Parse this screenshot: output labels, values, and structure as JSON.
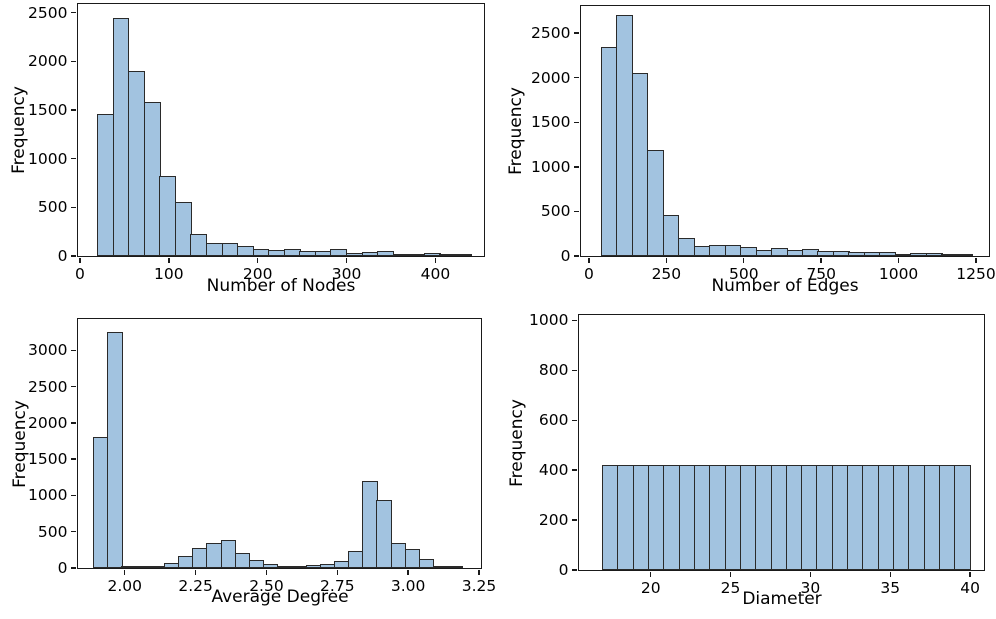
{
  "figure": {
    "background": "#ffffff",
    "bar_fill_color": "#a2c3e0",
    "bar_edge_color": "#2a2a2a",
    "spine_color": "#1a1a1a",
    "text_color": "#000000"
  },
  "chart_data": [
    {
      "type": "bar",
      "subtype": "histogram",
      "title": "",
      "xlabel": "Number of Nodes",
      "ylabel": "Frequency",
      "bin_start": 20,
      "bin_width": 17.5,
      "values": [
        1460,
        2450,
        1900,
        1580,
        820,
        560,
        230,
        130,
        135,
        100,
        70,
        65,
        75,
        55,
        55,
        70,
        35,
        40,
        55,
        15,
        20,
        30,
        10,
        12
      ],
      "xlim": [
        -2.2,
        454.6
      ],
      "ylim": [
        0,
        2590
      ],
      "xticks": [
        0,
        100,
        200,
        300,
        400
      ],
      "xtick_labels": [
        "0",
        "100",
        "200",
        "300",
        "400"
      ],
      "yticks": [
        0,
        500,
        1000,
        1500,
        2000,
        2500
      ],
      "ytick_labels": [
        "0",
        "500",
        "1000",
        "1500",
        "2000",
        "2500"
      ],
      "grid": false,
      "legend": null
    },
    {
      "type": "bar",
      "subtype": "histogram",
      "title": "",
      "xlabel": "Number of Edges",
      "ylabel": "Frequency",
      "bin_start": 40,
      "bin_width": 50,
      "values": [
        2350,
        2700,
        2050,
        1190,
        455,
        205,
        115,
        120,
        125,
        105,
        70,
        85,
        65,
        75,
        60,
        60,
        50,
        45,
        45,
        25,
        30,
        30,
        10,
        15
      ],
      "xlim": [
        -25.7,
        1292
      ],
      "ylim": [
        0,
        2805
      ],
      "xticks": [
        0,
        250,
        500,
        750,
        1000,
        1250
      ],
      "xtick_labels": [
        "0",
        "250",
        "500",
        "750",
        "1000",
        "1250"
      ],
      "yticks": [
        0,
        500,
        1000,
        1500,
        2000,
        2500
      ],
      "ytick_labels": [
        "0",
        "500",
        "1000",
        "1500",
        "2000",
        "2500"
      ],
      "grid": false,
      "legend": null
    },
    {
      "type": "bar",
      "subtype": "histogram",
      "title": "",
      "xlabel": "Average Degree",
      "ylabel": "Frequency",
      "bin_start": 1.89,
      "bin_width": 0.05,
      "values": [
        1800,
        3250,
        5,
        10,
        20,
        70,
        160,
        270,
        350,
        380,
        205,
        105,
        50,
        30,
        25,
        35,
        55,
        100,
        240,
        1200,
        940,
        350,
        260,
        120,
        30,
        5
      ],
      "xlim": [
        1.835,
        3.257
      ],
      "ylim": [
        0,
        3430
      ],
      "xticks": [
        2.0,
        2.25,
        2.5,
        2.75,
        3.0,
        3.25
      ],
      "xtick_labels": [
        "2.00",
        "2.25",
        "2.50",
        "2.75",
        "3.00",
        "3.25"
      ],
      "yticks": [
        0,
        500,
        1000,
        1500,
        2000,
        2500,
        3000
      ],
      "ytick_labels": [
        "0",
        "500",
        "1000",
        "1500",
        "2000",
        "2500",
        "3000"
      ],
      "grid": false,
      "legend": null
    },
    {
      "type": "bar",
      "subtype": "histogram",
      "title": "",
      "xlabel": "Diameter",
      "ylabel": "Frequency",
      "bin_start": 17,
      "bin_width": 0.9583,
      "values": [
        420,
        420,
        420,
        420,
        420,
        420,
        420,
        420,
        420,
        420,
        420,
        420,
        420,
        420,
        420,
        420,
        420,
        420,
        420,
        420,
        420,
        420,
        420,
        420
      ],
      "xlim": [
        15.51,
        40.87
      ],
      "ylim": [
        0,
        1022
      ],
      "xticks": [
        20,
        25,
        30,
        35,
        40
      ],
      "xtick_labels": [
        "20",
        "25",
        "30",
        "35",
        "40"
      ],
      "yticks": [
        0,
        200,
        400,
        600,
        800,
        1000
      ],
      "ytick_labels": [
        "0",
        "200",
        "400",
        "600",
        "800",
        "1000"
      ],
      "grid": false,
      "legend": null
    }
  ]
}
